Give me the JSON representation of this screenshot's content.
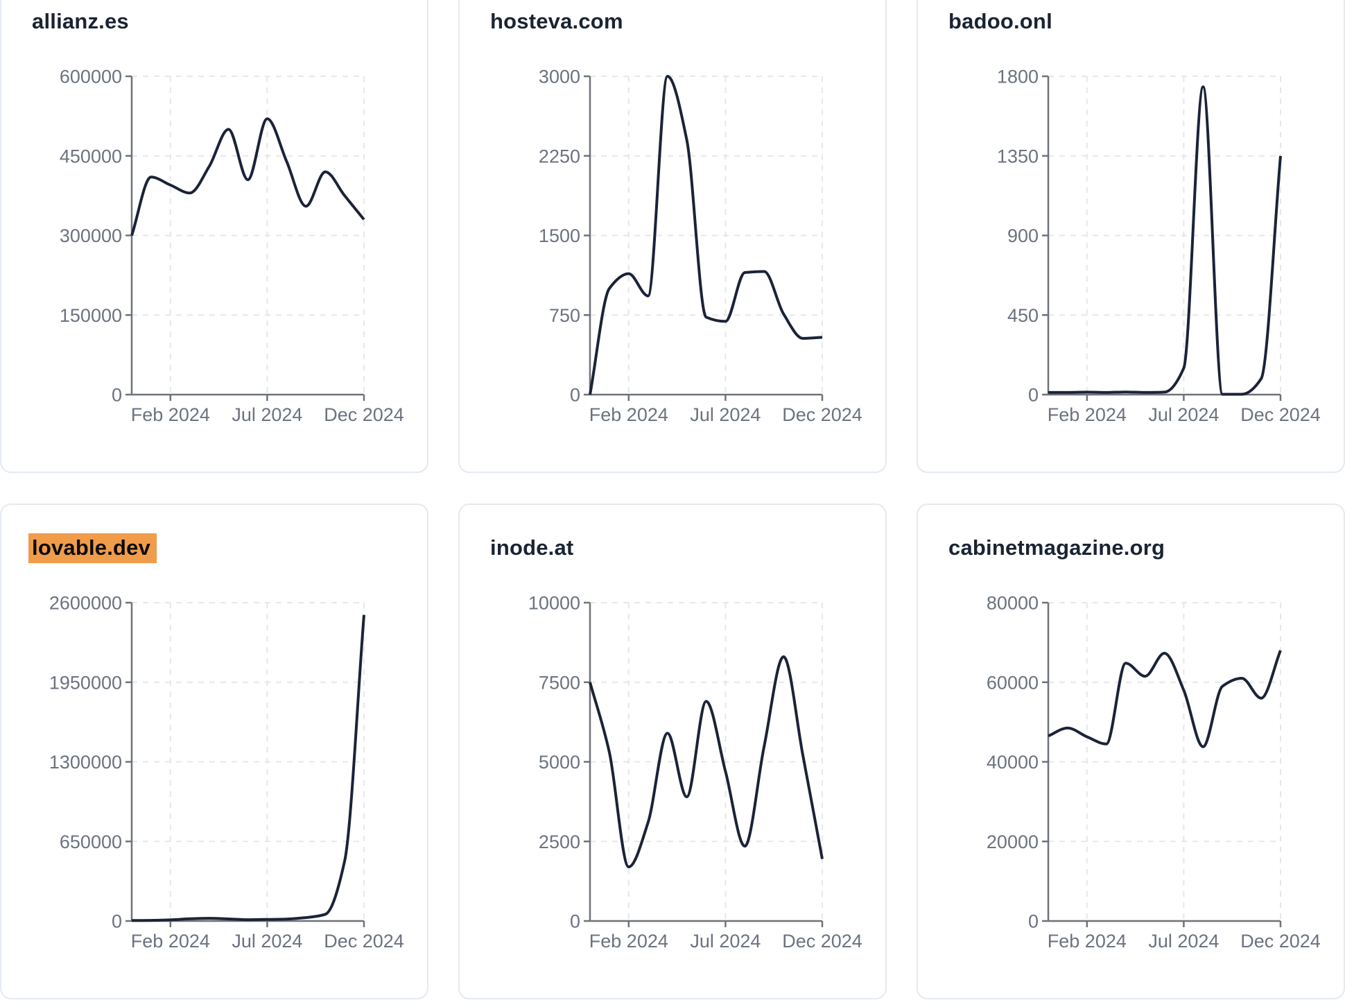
{
  "page": {
    "background": "#ffffff",
    "card_border_color": "#e4eaf1",
    "title_color": "#1a2333",
    "axis_color": "#6e7379",
    "tick_label_color": "#6b7280",
    "grid_color": "#e5e7eb",
    "line_color": "#1b2338",
    "highlight_color": "#f09c4b"
  },
  "chart_data": [
    {
      "type": "line",
      "title": "allianz.es",
      "highlighted": false,
      "x": [
        "Dec 2023",
        "Jan 2024",
        "Feb 2024",
        "Mar 2024",
        "Apr 2024",
        "May 2024",
        "Jun 2024",
        "Jul 2024",
        "Aug 2024",
        "Sep 2024",
        "Oct 2024",
        "Nov 2024",
        "Dec 2024"
      ],
      "values": [
        300000,
        410000,
        395000,
        380000,
        430000,
        500000,
        405000,
        520000,
        440000,
        355000,
        420000,
        375000,
        330000
      ],
      "y_ticks": [
        0,
        150000,
        300000,
        450000,
        600000
      ],
      "x_tick_labels": [
        "Feb 2024",
        "Jul 2024",
        "Dec 2024"
      ],
      "x_tick_indices": [
        2,
        7,
        12
      ],
      "ylim": [
        0,
        600000
      ],
      "grid": true,
      "legend": "none"
    },
    {
      "type": "line",
      "title": "hosteva.com",
      "highlighted": false,
      "x": [
        "Dec 2023",
        "Jan 2024",
        "Feb 2024",
        "Mar 2024",
        "Apr 2024",
        "May 2024",
        "Jun 2024",
        "Jul 2024",
        "Aug 2024",
        "Sep 2024",
        "Oct 2024",
        "Nov 2024",
        "Dec 2024"
      ],
      "values": [
        0,
        1000,
        1140,
        930,
        3000,
        2400,
        730,
        690,
        1150,
        1160,
        760,
        530,
        540
      ],
      "y_ticks": [
        0,
        750,
        1500,
        2250,
        3000
      ],
      "x_tick_labels": [
        "Feb 2024",
        "Jul 2024",
        "Dec 2024"
      ],
      "x_tick_indices": [
        2,
        7,
        12
      ],
      "ylim": [
        0,
        3000
      ],
      "grid": true,
      "legend": "none"
    },
    {
      "type": "line",
      "title": "badoo.onl",
      "highlighted": false,
      "x": [
        "Dec 2023",
        "Jan 2024",
        "Feb 2024",
        "Mar 2024",
        "Apr 2024",
        "May 2024",
        "Jun 2024",
        "Jul 2024",
        "Aug 2024",
        "Sep 2024",
        "Oct 2024",
        "Nov 2024",
        "Dec 2024"
      ],
      "values": [
        12,
        12,
        14,
        12,
        15,
        12,
        14,
        150,
        1740,
        2,
        2,
        90,
        1350
      ],
      "y_ticks": [
        0,
        450,
        900,
        1350,
        1800
      ],
      "x_tick_labels": [
        "Feb 2024",
        "Jul 2024",
        "Dec 2024"
      ],
      "x_tick_indices": [
        2,
        7,
        12
      ],
      "ylim": [
        0,
        1800
      ],
      "grid": true,
      "legend": "none"
    },
    {
      "type": "line",
      "title": "lovable.dev",
      "highlighted": true,
      "x": [
        "Dec 2023",
        "Jan 2024",
        "Feb 2024",
        "Mar 2024",
        "Apr 2024",
        "May 2024",
        "Jun 2024",
        "Jul 2024",
        "Aug 2024",
        "Sep 2024",
        "Oct 2024",
        "Nov 2024",
        "Dec 2024"
      ],
      "values": [
        4000,
        5000,
        9000,
        18000,
        22000,
        17000,
        11000,
        13000,
        16000,
        28000,
        55000,
        490000,
        2500000
      ],
      "y_ticks": [
        0,
        650000,
        1300000,
        1950000,
        2600000
      ],
      "x_tick_labels": [
        "Feb 2024",
        "Jul 2024",
        "Dec 2024"
      ],
      "x_tick_indices": [
        2,
        7,
        12
      ],
      "ylim": [
        0,
        2600000
      ],
      "grid": true,
      "legend": "none"
    },
    {
      "type": "line",
      "title": "inode.at",
      "highlighted": false,
      "x": [
        "Dec 2023",
        "Jan 2024",
        "Feb 2024",
        "Mar 2024",
        "Apr 2024",
        "May 2024",
        "Jun 2024",
        "Jul 2024",
        "Aug 2024",
        "Sep 2024",
        "Oct 2024",
        "Nov 2024",
        "Dec 2024"
      ],
      "values": [
        7500,
        5300,
        1700,
        3100,
        5900,
        3900,
        6900,
        4700,
        2350,
        5500,
        8300,
        5200,
        1950
      ],
      "y_ticks": [
        0,
        2500,
        5000,
        7500,
        10000
      ],
      "x_tick_labels": [
        "Feb 2024",
        "Jul 2024",
        "Dec 2024"
      ],
      "x_tick_indices": [
        2,
        7,
        12
      ],
      "ylim": [
        0,
        10000
      ],
      "grid": true,
      "legend": "none"
    },
    {
      "type": "line",
      "title": "cabinetmagazine.org",
      "highlighted": false,
      "x": [
        "Dec 2023",
        "Jan 2024",
        "Feb 2024",
        "Mar 2024",
        "Apr 2024",
        "May 2024",
        "Jun 2024",
        "Jul 2024",
        "Aug 2024",
        "Sep 2024",
        "Oct 2024",
        "Nov 2024",
        "Dec 2024"
      ],
      "values": [
        46500,
        48500,
        46300,
        44500,
        64800,
        61500,
        67300,
        58000,
        43800,
        59000,
        61000,
        56000,
        68000
      ],
      "y_ticks": [
        0,
        20000,
        40000,
        60000,
        80000
      ],
      "x_tick_labels": [
        "Feb 2024",
        "Jul 2024",
        "Dec 2024"
      ],
      "x_tick_indices": [
        2,
        7,
        12
      ],
      "ylim": [
        0,
        80000
      ],
      "grid": true,
      "legend": "none"
    }
  ]
}
